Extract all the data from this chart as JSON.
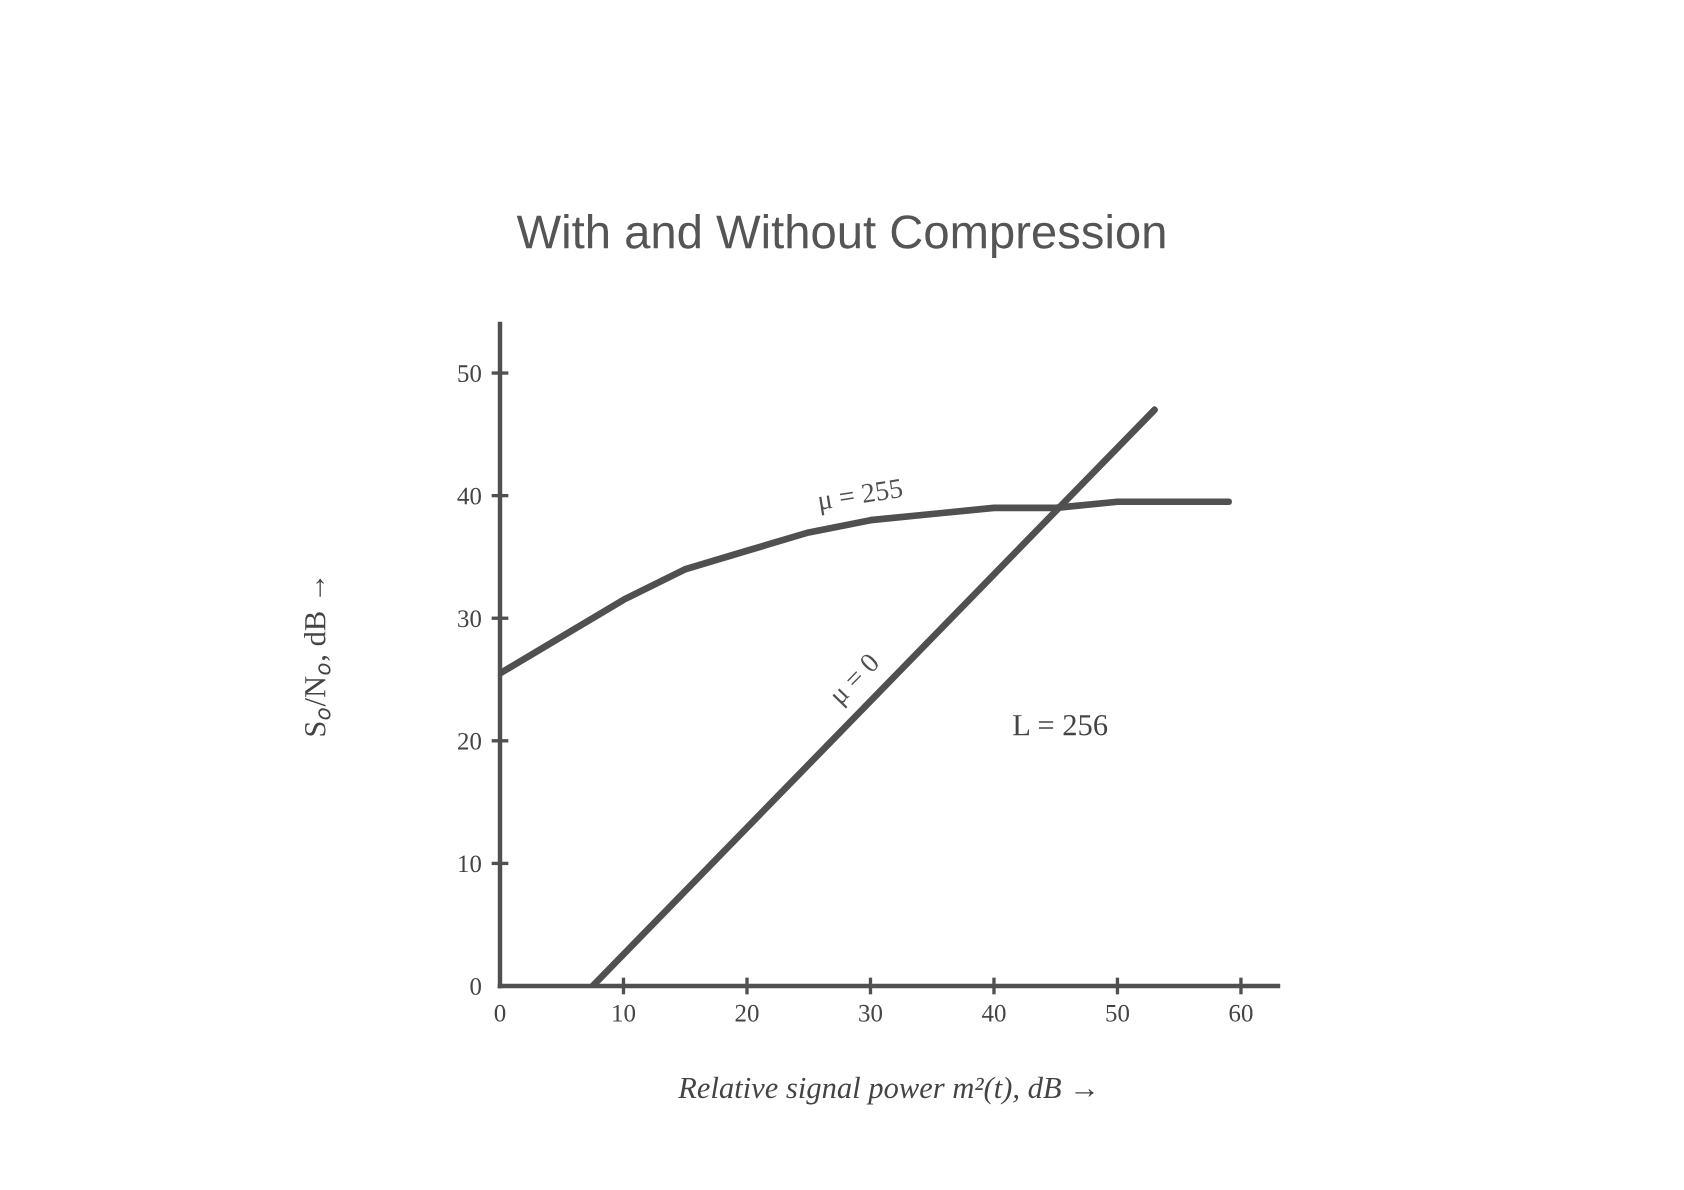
{
  "chart_data": {
    "type": "line",
    "title": "With and Without Compression",
    "xlabel": "Relative signal power m²(t), dB →",
    "ylabel": "S$_{o}$/N$_{o}$, dB →",
    "series": [
      {
        "name": "μ = 255",
        "color": "#505050",
        "x": [
          0,
          5,
          10,
          15,
          20,
          25,
          30,
          35,
          40,
          45,
          50,
          59
        ],
        "values": [
          25.5,
          28.5,
          31.5,
          34,
          35.5,
          37,
          38,
          38.5,
          39,
          39,
          39.5,
          39.5
        ]
      },
      {
        "name": "μ = 0",
        "color": "#505050",
        "x": [
          7.5,
          53
        ],
        "values": [
          0,
          47
        ]
      }
    ],
    "xlim": [
      0,
      63
    ],
    "ylim": [
      0,
      54
    ],
    "xticks": [
      0,
      10,
      20,
      30,
      40,
      50,
      60
    ],
    "yticks": [
      0,
      10,
      20,
      30,
      40,
      50
    ],
    "annotations": [
      "L = 256"
    ],
    "grid": false,
    "legend": false,
    "marker": "none",
    "line_style": "solid"
  }
}
